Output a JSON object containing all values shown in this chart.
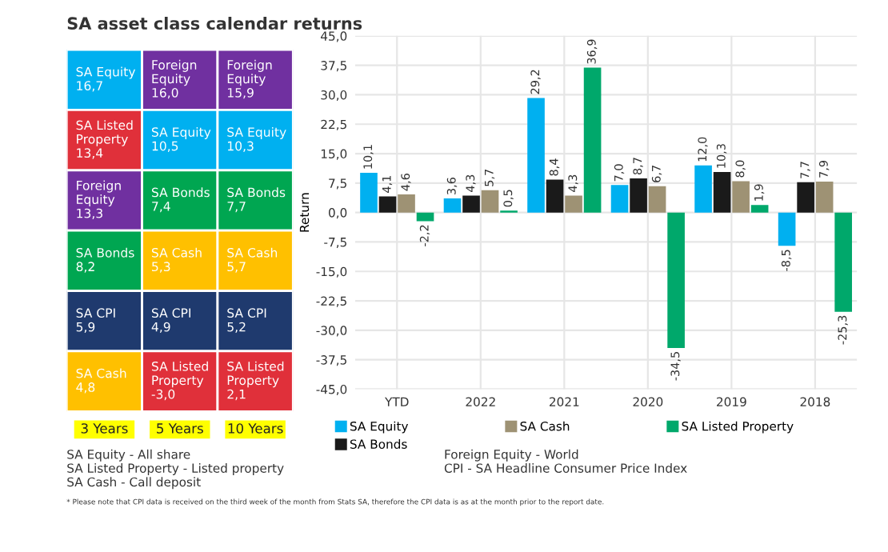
{
  "chart_data": [
    {
      "type": "other",
      "title": "SA asset class calendar returns",
      "annotations": [
        "SA Equity\n16,7",
        "Foreign\nEquity\n16,0",
        "Foreign\nEquity\n15,9",
        "SA Listed\nProperty\n13,4",
        "SA Equity\n10,5",
        "SA Equity\n10,3",
        "Foreign\nEquity\n13,3",
        "SA Bonds\n7,4",
        "SA Bonds\n7,7",
        "SA Bonds\n8,2",
        "SA Cash\n5,3",
        "SA Cash\n5,7",
        "SA CPI\n5,9",
        "SA CPI\n4,9",
        "SA CPI\n5,2",
        "SA Cash\n4,8",
        "SA Listed\nProperty\n-3,0",
        "SA Listed\nProperty\n2,1",
        "3 Years",
        "5 Years",
        "10 Years"
      ],
      "colors": [
        "#00b0f0",
        "#7030a0",
        "#7030a0",
        "#e0303a",
        "#00b0f0",
        "#00b0f0",
        "#7030a0",
        "#00a651",
        "#00a651",
        "#00a651",
        "#ffc000",
        "#ffc000",
        "#1f3a6e",
        "#1f3a6e",
        "#1f3a6e",
        "#ffc000",
        "#e0303a",
        "#e0303a",
        "#ffff00",
        "#ffff00",
        "#ffff00"
      ]
    },
    {
      "type": "bar",
      "ylabel": "Return",
      "categories": [
        "YTD",
        "2022",
        "2021",
        "2020",
        "2019",
        "2018"
      ],
      "series": [
        {
          "name": "SA Equity",
          "color": "#00b0f0",
          "values": [
            10.1,
            3.6,
            29.2,
            7.0,
            12.0,
            -8.5
          ],
          "value_labels": [
            "10,1",
            "3,6",
            "29,2",
            "7,0",
            "12,0",
            "-8,5"
          ]
        },
        {
          "name": "SA Bonds",
          "color": "#1a1a1a",
          "values": [
            4.1,
            4.3,
            8.4,
            8.7,
            10.3,
            7.7
          ],
          "value_labels": [
            "4,1",
            "4,3",
            "8,4",
            "8,7",
            "10,3",
            "7,7"
          ]
        },
        {
          "name": "SA Cash",
          "color": "#9e9274",
          "values": [
            4.6,
            5.7,
            4.3,
            6.7,
            8.0,
            7.9
          ],
          "value_labels": [
            "4,6",
            "5,7",
            "4,3",
            "6,7",
            "8,0",
            "7,9"
          ]
        },
        {
          "name": "SA Listed Property",
          "color": "#00a86b",
          "values": [
            -2.2,
            0.5,
            36.9,
            -34.5,
            1.9,
            -25.3
          ],
          "value_labels": [
            "-2,2",
            "0,5",
            "36,9",
            "-34,5",
            "1,9",
            "-25,3"
          ]
        }
      ],
      "ylim": [
        -45,
        45
      ],
      "yticks": [
        {
          "value": -45,
          "label": "-45,0"
        },
        {
          "value": -37.5,
          "label": "-37,5"
        },
        {
          "value": -30,
          "label": "-30,0"
        },
        {
          "value": -22.5,
          "label": "-22,5"
        },
        {
          "value": -15,
          "label": "-15,0"
        },
        {
          "value": -7.5,
          "label": "-7,5"
        },
        {
          "value": 0,
          "label": "0,0"
        },
        {
          "value": 7.5,
          "label": "7,5"
        },
        {
          "value": 15,
          "label": "15,0"
        },
        {
          "value": 22.5,
          "label": "22,5"
        },
        {
          "value": 30,
          "label": "30,0"
        },
        {
          "value": 37.5,
          "label": "37,5"
        },
        {
          "value": 45,
          "label": "45,0"
        }
      ],
      "grid": true,
      "legend": "bottom",
      "annotations": [
        "SA Equity - All share",
        "SA Listed Property - Listed property",
        "SA Cash - Call deposit",
        "Foreign Equity - World",
        "CPI - SA Headline Consumer Price Index",
        "* Please note that CPI data is received on the third week of the month from Stats SA, therefore the CPI data is as at the month prior to the report date."
      ]
    }
  ]
}
